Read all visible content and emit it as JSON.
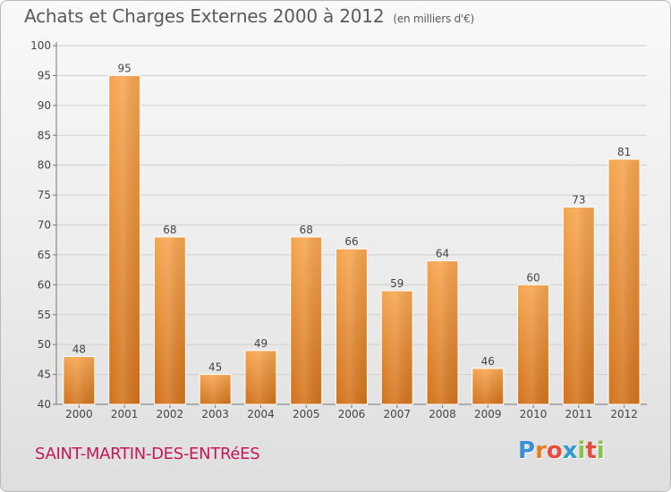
{
  "header": {
    "title": "Achats et Charges Externes 2000 à 2012",
    "unit": "(en milliers d'€)"
  },
  "footer": {
    "town": "SAINT-MARTIN-DES-ENTRéES",
    "logo_letters": [
      {
        "ch": "P",
        "color": "#3a8fd6"
      },
      {
        "ch": "r",
        "color": "#e67e22"
      },
      {
        "ch": "o",
        "color": "#e74c3c"
      },
      {
        "ch": "x",
        "color": "#2e9ad0"
      },
      {
        "ch": "i",
        "color": "#8bc34a"
      },
      {
        "ch": "t",
        "color": "#e74c3c"
      },
      {
        "ch": "i",
        "color": "#8bc34a"
      }
    ]
  },
  "chart_data": {
    "type": "bar",
    "title": "Achats et Charges Externes 2000 à 2012",
    "subtitle": "(en milliers d'€)",
    "categories": [
      "2000",
      "2001",
      "2002",
      "2003",
      "2004",
      "2005",
      "2006",
      "2007",
      "2008",
      "2009",
      "2010",
      "2011",
      "2012"
    ],
    "values": [
      48,
      95,
      68,
      45,
      49,
      68,
      66,
      59,
      64,
      46,
      60,
      73,
      81
    ],
    "xlabel": "",
    "ylabel": "",
    "ylim": [
      40,
      100
    ],
    "yticks": [
      40,
      45,
      50,
      55,
      60,
      65,
      70,
      75,
      80,
      85,
      90,
      95,
      100
    ],
    "grid": true,
    "bar_color": "#f0a04c",
    "bar_color_dark": "#d4791f"
  }
}
